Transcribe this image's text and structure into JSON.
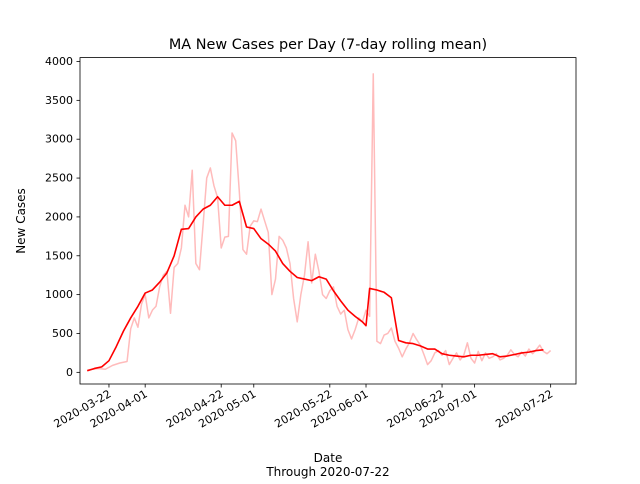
{
  "chart_data": {
    "type": "line",
    "title": "MA New Cases per Day (7-day rolling mean)",
    "xlabel": "Date",
    "xlabel_sub": "Through 2020-07-22",
    "ylabel": "New Cases",
    "xlim": [
      "2020-03-14",
      "2020-07-29"
    ],
    "ylim": [
      -150,
      4050
    ],
    "grid": false,
    "x_ticks": [
      "2020-03-22",
      "2020-04-01",
      "2020-04-22",
      "2020-05-01",
      "2020-05-22",
      "2020-06-01",
      "2020-06-22",
      "2020-07-01",
      "2020-07-22"
    ],
    "y_ticks": [
      0,
      500,
      1000,
      1500,
      2000,
      2500,
      3000,
      3500,
      4000
    ],
    "series": [
      {
        "color": "#ffbbbb",
        "x": [
          "2020-03-16",
          "2020-03-19",
          "2020-03-21",
          "2020-03-23",
          "2020-03-25",
          "2020-03-27",
          "2020-03-28",
          "2020-03-29",
          "2020-03-30",
          "2020-03-31",
          "2020-04-01",
          "2020-04-02",
          "2020-04-03",
          "2020-04-04",
          "2020-04-05",
          "2020-04-06",
          "2020-04-07",
          "2020-04-08",
          "2020-04-09",
          "2020-04-10",
          "2020-04-11",
          "2020-04-12",
          "2020-04-13",
          "2020-04-14",
          "2020-04-15",
          "2020-04-16",
          "2020-04-17",
          "2020-04-18",
          "2020-04-19",
          "2020-04-20",
          "2020-04-21",
          "2020-04-22",
          "2020-04-23",
          "2020-04-24",
          "2020-04-25",
          "2020-04-26",
          "2020-04-27",
          "2020-04-28",
          "2020-04-29",
          "2020-04-30",
          "2020-05-01",
          "2020-05-02",
          "2020-05-03",
          "2020-05-04",
          "2020-05-05",
          "2020-05-06",
          "2020-05-07",
          "2020-05-08",
          "2020-05-09",
          "2020-05-10",
          "2020-05-11",
          "2020-05-12",
          "2020-05-13",
          "2020-05-14",
          "2020-05-15",
          "2020-05-16",
          "2020-05-17",
          "2020-05-18",
          "2020-05-19",
          "2020-05-20",
          "2020-05-21",
          "2020-05-22",
          "2020-05-23",
          "2020-05-24",
          "2020-05-25",
          "2020-05-26",
          "2020-05-27",
          "2020-05-28",
          "2020-05-29",
          "2020-05-30",
          "2020-05-31",
          "2020-06-01",
          "2020-06-02",
          "2020-06-03",
          "2020-06-04",
          "2020-06-05",
          "2020-06-06",
          "2020-06-07",
          "2020-06-08",
          "2020-06-09",
          "2020-06-10",
          "2020-06-11",
          "2020-06-12",
          "2020-06-13",
          "2020-06-14",
          "2020-06-15",
          "2020-06-16",
          "2020-06-17",
          "2020-06-18",
          "2020-06-19",
          "2020-06-20",
          "2020-06-21",
          "2020-06-22",
          "2020-06-23",
          "2020-06-24",
          "2020-06-25",
          "2020-06-26",
          "2020-06-27",
          "2020-06-28",
          "2020-06-29",
          "2020-06-30",
          "2020-07-01",
          "2020-07-02",
          "2020-07-03",
          "2020-07-04",
          "2020-07-05",
          "2020-07-06",
          "2020-07-07",
          "2020-07-08",
          "2020-07-09",
          "2020-07-10",
          "2020-07-11",
          "2020-07-12",
          "2020-07-13",
          "2020-07-14",
          "2020-07-15",
          "2020-07-16",
          "2020-07-17",
          "2020-07-18",
          "2020-07-19",
          "2020-07-20",
          "2020-07-21",
          "2020-07-22"
        ],
        "values": [
          30,
          50,
          40,
          90,
          120,
          140,
          560,
          700,
          580,
          880,
          1000,
          700,
          800,
          850,
          1100,
          1250,
          1300,
          760,
          1350,
          1400,
          1600,
          2150,
          2000,
          2600,
          1400,
          1320,
          1900,
          2500,
          2630,
          2400,
          2250,
          1600,
          1740,
          1750,
          3080,
          2980,
          2330,
          1580,
          1520,
          1880,
          1950,
          1940,
          2100,
          1950,
          1800,
          1000,
          1200,
          1750,
          1700,
          1600,
          1400,
          950,
          650,
          1000,
          1250,
          1680,
          1150,
          1520,
          1300,
          1000,
          950,
          1050,
          1100,
          850,
          750,
          800,
          550,
          430,
          550,
          700,
          650,
          800,
          720,
          3840,
          400,
          370,
          480,
          500,
          570,
          400,
          310,
          200,
          300,
          380,
          500,
          420,
          350,
          230,
          100,
          150,
          250,
          280,
          220,
          280,
          100,
          180,
          250,
          160,
          220,
          380,
          180,
          120,
          270,
          150,
          250,
          180,
          200,
          240,
          160,
          180,
          220,
          290,
          230,
          200,
          260,
          210,
          300,
          240,
          290,
          350,
          270,
          240,
          280
        ]
      },
      {
        "color": "#ff0000",
        "x": [
          "2020-03-16",
          "2020-03-18",
          "2020-03-20",
          "2020-03-22",
          "2020-03-24",
          "2020-03-26",
          "2020-03-28",
          "2020-03-30",
          "2020-04-01",
          "2020-04-03",
          "2020-04-05",
          "2020-04-07",
          "2020-04-09",
          "2020-04-11",
          "2020-04-13",
          "2020-04-15",
          "2020-04-17",
          "2020-04-19",
          "2020-04-21",
          "2020-04-23",
          "2020-04-25",
          "2020-04-27",
          "2020-04-29",
          "2020-05-01",
          "2020-05-03",
          "2020-05-05",
          "2020-05-07",
          "2020-05-09",
          "2020-05-11",
          "2020-05-13",
          "2020-05-15",
          "2020-05-17",
          "2020-05-19",
          "2020-05-21",
          "2020-05-23",
          "2020-05-25",
          "2020-05-27",
          "2020-05-29",
          "2020-05-31",
          "2020-06-01",
          "2020-06-02",
          "2020-06-04",
          "2020-06-06",
          "2020-06-08",
          "2020-06-10",
          "2020-06-12",
          "2020-06-14",
          "2020-06-16",
          "2020-06-18",
          "2020-06-20",
          "2020-06-22",
          "2020-06-24",
          "2020-06-26",
          "2020-06-28",
          "2020-06-30",
          "2020-07-02",
          "2020-07-04",
          "2020-07-06",
          "2020-07-08",
          "2020-07-10",
          "2020-07-12",
          "2020-07-14",
          "2020-07-16",
          "2020-07-18",
          "2020-07-20"
        ],
        "values": [
          20,
          50,
          70,
          150,
          330,
          530,
          700,
          850,
          1020,
          1060,
          1160,
          1280,
          1500,
          1840,
          1850,
          2000,
          2100,
          2150,
          2260,
          2150,
          2150,
          2200,
          1870,
          1850,
          1720,
          1650,
          1560,
          1400,
          1300,
          1220,
          1200,
          1180,
          1230,
          1200,
          1050,
          920,
          800,
          720,
          650,
          600,
          1080,
          1060,
          1030,
          960,
          410,
          380,
          370,
          340,
          300,
          300,
          240,
          220,
          210,
          200,
          220,
          220,
          230,
          240,
          200,
          210,
          230,
          250,
          260,
          280,
          290
        ]
      }
    ]
  }
}
